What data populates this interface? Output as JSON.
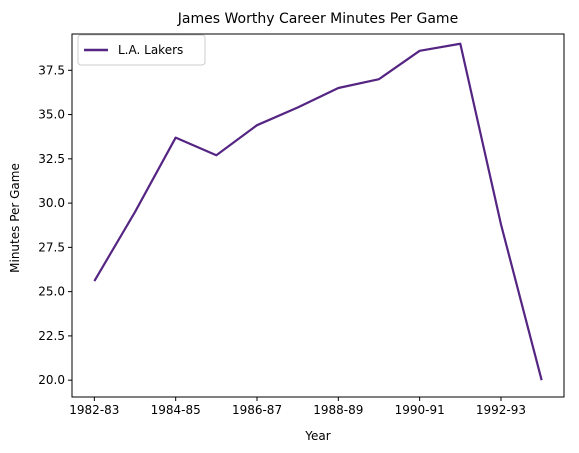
{
  "chart_data": {
    "type": "line",
    "title": "James Worthy Career Minutes Per Game",
    "xlabel": "Year",
    "ylabel": "Minutes Per Game",
    "x": [
      "1982-83",
      "1983-84",
      "1984-85",
      "1985-86",
      "1986-87",
      "1987-88",
      "1988-89",
      "1989-90",
      "1990-91",
      "1991-92",
      "1992-93",
      "1993-94"
    ],
    "x_tick_labels": [
      "1982-83",
      "1984-85",
      "1986-87",
      "1988-89",
      "1990-91",
      "1992-93"
    ],
    "y_ticks": [
      "20.0",
      "22.5",
      "25.0",
      "27.5",
      "30.0",
      "32.5",
      "35.0",
      "37.5"
    ],
    "ylim": [
      19.05,
      39.55
    ],
    "grid": false,
    "legend_position": "upper-left",
    "series": [
      {
        "name": "L.A. Lakers",
        "color": "#552583",
        "values": [
          25.6,
          29.5,
          33.7,
          32.7,
          34.4,
          35.4,
          36.5,
          37.0,
          38.6,
          39.0,
          28.8,
          20.0
        ]
      }
    ]
  }
}
